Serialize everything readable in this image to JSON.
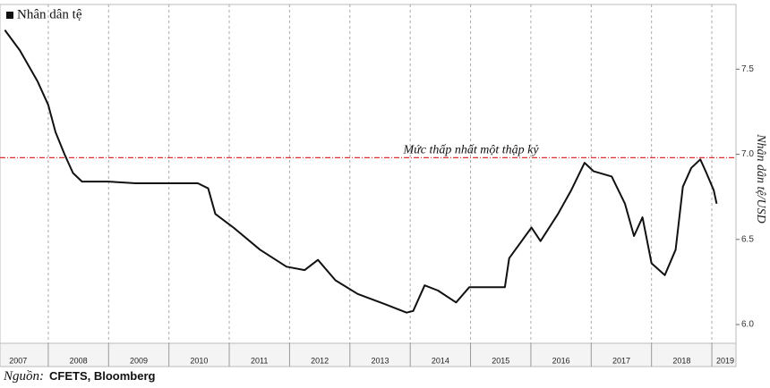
{
  "chart_data": {
    "type": "line",
    "legend": "Nhân dân tệ",
    "y_label": "Nhân dân tệ/USD",
    "annotation": "Mức thấp nhất một thập kỷ",
    "reference_line": 6.98,
    "reference_color": "#e03030",
    "source_label": "Nguồn:",
    "source": "CFETS, Bloomberg",
    "x": [
      2007.28,
      2007.53,
      2007.82,
      2008.0,
      2008.12,
      2008.27,
      2008.41,
      2008.56,
      2008.99,
      2009.45,
      2010.48,
      2010.65,
      2010.77,
      2011.07,
      2011.51,
      2011.95,
      2012.25,
      2012.47,
      2012.76,
      2013.13,
      2013.58,
      2013.94,
      2014.05,
      2014.24,
      2014.46,
      2014.76,
      2014.98,
      2015.2,
      2015.57,
      2015.64,
      2016.01,
      2016.16,
      2016.45,
      2016.67,
      2016.89,
      2017.04,
      2017.34,
      2017.56,
      2017.71,
      2017.85,
      2018.0,
      2018.22,
      2018.4,
      2018.52,
      2018.66,
      2018.81,
      2018.91,
      2019.03,
      2019.08
    ],
    "series": [
      {
        "name": "Nhân dân tệ",
        "color": "#111111",
        "values": [
          7.73,
          7.61,
          7.43,
          7.29,
          7.13,
          7.0,
          6.89,
          6.84,
          6.84,
          6.83,
          6.83,
          6.8,
          6.65,
          6.57,
          6.44,
          6.34,
          6.32,
          6.38,
          6.26,
          6.18,
          6.12,
          6.07,
          6.08,
          6.23,
          6.2,
          6.13,
          6.22,
          6.22,
          6.22,
          6.39,
          6.57,
          6.49,
          6.65,
          6.79,
          6.95,
          6.9,
          6.87,
          6.71,
          6.52,
          6.63,
          6.36,
          6.29,
          6.44,
          6.81,
          6.92,
          6.97,
          6.89,
          6.79,
          6.71
        ]
      }
    ],
    "xlim": [
      2007.2,
      2019.4
    ],
    "xticks": [
      2007,
      2008,
      2009,
      2010,
      2011,
      2012,
      2013,
      2014,
      2015,
      2016,
      2017,
      2018,
      2019
    ],
    "ylim": [
      5.89,
      7.88
    ],
    "yticks": [
      {
        "value": 6,
        "label": "6.0"
      },
      6.5,
      {
        "value": 7,
        "label": "7.0"
      },
      7.5
    ],
    "grid": true
  }
}
